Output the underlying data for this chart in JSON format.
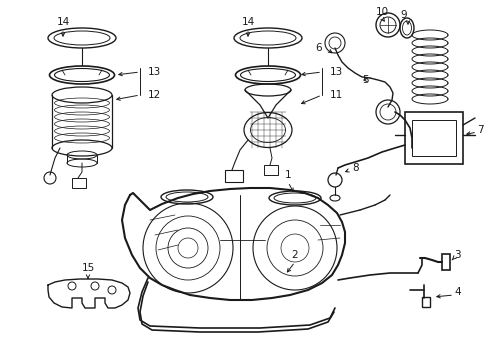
{
  "bg_color": "#ffffff",
  "line_color": "#1a1a1a",
  "fig_width": 4.89,
  "fig_height": 3.6,
  "dpi": 100,
  "font_size": 7.5
}
